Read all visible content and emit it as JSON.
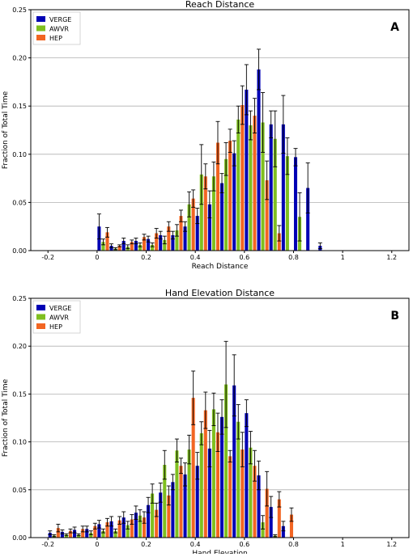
{
  "chart_data": [
    {
      "panel_letter": "A",
      "type": "bar",
      "title": "Reach Distance",
      "xlabel": "Reach Distance",
      "ylabel": "Fraction of Total Time",
      "xlim": [
        -0.27,
        1.27
      ],
      "ylim": [
        0,
        0.25
      ],
      "x_ticks": [
        -0.2,
        0,
        0.2,
        0.4,
        0.6,
        0.8,
        1,
        1.2
      ],
      "x_tick_labels": [
        "-0.2",
        "0",
        "0.2",
        "0.4",
        "0.6",
        "0.8",
        "1",
        "1.2"
      ],
      "y_ticks": [
        0,
        0.05,
        0.1,
        0.15,
        0.2,
        0.25
      ],
      "y_tick_labels": [
        "0.00",
        "0.05",
        "0.10",
        "0.15",
        "0.20",
        "0.25"
      ],
      "grid": "horizontal",
      "legend_position": "top-left",
      "bin_width": 0.05,
      "bins": [
        -0.2,
        -0.15,
        -0.1,
        -0.05,
        0,
        0.05,
        0.1,
        0.15,
        0.2,
        0.25,
        0.3,
        0.35,
        0.4,
        0.45,
        0.5,
        0.55,
        0.6,
        0.65,
        0.7,
        0.75,
        0.8,
        0.85,
        0.9,
        0.95,
        1,
        1.05,
        1.1,
        1.15
      ],
      "series": [
        {
          "name": "VERGE",
          "color": "#0000b4",
          "values": [
            0,
            0,
            0,
            0,
            0.025,
            0.005,
            0.01,
            0.01,
            0.012,
            0.016,
            0.016,
            0.025,
            0.036,
            0.048,
            0.07,
            0.101,
            0.167,
            0.188,
            0.131,
            0.131,
            0.097,
            0.065,
            0.005,
            0,
            0,
            0,
            0,
            0
          ],
          "errors": [
            0,
            0,
            0,
            0,
            0.013,
            0.002,
            0.003,
            0.003,
            0.003,
            0.004,
            0.004,
            0.005,
            0.008,
            0.014,
            0.01,
            0.013,
            0.026,
            0.021,
            0.014,
            0.03,
            0.009,
            0.026,
            0.003,
            0,
            0,
            0,
            0,
            0
          ]
        },
        {
          "name": "AWVR",
          "color": "#7fbf1f",
          "values": [
            0,
            0,
            0,
            0,
            0.009,
            0.002,
            0.004,
            0.006,
            0.006,
            0.011,
            0.021,
            0.048,
            0.079,
            0.077,
            0.095,
            0.136,
            0.13,
            0.133,
            0.116,
            0.098,
            0.035,
            0,
            0,
            0,
            0,
            0,
            0,
            0
          ],
          "errors": [
            0,
            0,
            0,
            0,
            0.003,
            0.001,
            0.002,
            0.002,
            0.002,
            0.004,
            0.006,
            0.013,
            0.031,
            0.015,
            0.017,
            0.014,
            0.015,
            0.031,
            0.029,
            0.019,
            0.025,
            0,
            0,
            0,
            0,
            0,
            0,
            0
          ],
          "offset_bins": 4
        },
        {
          "name": "HEP",
          "color": "#f26522",
          "values": [
            0,
            0,
            0,
            0,
            0.019,
            0.005,
            0.009,
            0.014,
            0.018,
            0.025,
            0.036,
            0.054,
            0.077,
            0.112,
            0.114,
            0.151,
            0.14,
            0.073,
            0.018,
            0,
            0,
            0,
            0,
            0,
            0,
            0,
            0,
            0
          ],
          "errors": [
            0,
            0,
            0,
            0,
            0.005,
            0.001,
            0.002,
            0.003,
            0.005,
            0.005,
            0.006,
            0.009,
            0.013,
            0.022,
            0.012,
            0.02,
            0.018,
            0.02,
            0.008,
            0,
            0,
            0,
            0,
            0,
            0,
            0,
            0,
            0
          ],
          "offset_bins": 4
        }
      ]
    },
    {
      "panel_letter": "B",
      "type": "bar",
      "title": "Hand Elevation Distance",
      "xlabel": "Hand Elevation",
      "ylabel": "Fraction of Total Time",
      "xlim": [
        -0.27,
        1.27
      ],
      "ylim": [
        0,
        0.25
      ],
      "x_ticks": [
        -0.2,
        0,
        0.2,
        0.4,
        0.6,
        0.8,
        1,
        1.2
      ],
      "x_tick_labels": [
        "-0.2",
        "0",
        "0.2",
        "0.4",
        "0.6",
        "0.8",
        "1",
        "1.2"
      ],
      "y_ticks": [
        0,
        0.05,
        0.1,
        0.15,
        0.2,
        0.25
      ],
      "y_tick_labels": [
        "0.00",
        "0.05",
        "0.10",
        "0.15",
        "0.20",
        "0.25"
      ],
      "grid": "horizontal",
      "legend_position": "top-left",
      "bin_width": 0.05,
      "bins": [
        -0.2,
        -0.15,
        -0.1,
        -0.05,
        0,
        0.05,
        0.1,
        0.15,
        0.2,
        0.25,
        0.3,
        0.35,
        0.4,
        0.45,
        0.5,
        0.55,
        0.6,
        0.65,
        0.7,
        0.75,
        0.8,
        0.85,
        0.9,
        0.95,
        1,
        1.05,
        1.1,
        1.15
      ],
      "series": [
        {
          "name": "VERGE",
          "color": "#0000b4",
          "values": [
            0.005,
            0.006,
            0.008,
            0.009,
            0.014,
            0.017,
            0.021,
            0.026,
            0.034,
            0.047,
            0.058,
            0.066,
            0.075,
            0.093,
            0.126,
            0.159,
            0.13,
            0.065,
            0.032,
            0.012,
            0,
            0,
            0,
            0,
            0,
            0,
            0,
            0
          ],
          "errors": [
            0.002,
            0.002,
            0.003,
            0.003,
            0.004,
            0.005,
            0.006,
            0.007,
            0.008,
            0.01,
            0.008,
            0.012,
            0.014,
            0.019,
            0.018,
            0.032,
            0.014,
            0.015,
            0.011,
            0.005,
            0,
            0,
            0,
            0,
            0,
            0,
            0,
            0
          ]
        },
        {
          "name": "AWVR",
          "color": "#7fbf1f",
          "values": [
            0.002,
            0.003,
            0.003,
            0.005,
            0.007,
            0.007,
            0.013,
            0.023,
            0.046,
            0.076,
            0.091,
            0.092,
            0.109,
            0.134,
            0.16,
            0.121,
            0.094,
            0.016,
            0.002,
            0,
            0,
            0,
            0,
            0,
            0,
            0,
            0,
            0
          ],
          "errors": [
            0.001,
            0.001,
            0.001,
            0.002,
            0.002,
            0.002,
            0.004,
            0.006,
            0.01,
            0.015,
            0.012,
            0.015,
            0.012,
            0.017,
            0.045,
            0.018,
            0.017,
            0.007,
            0.001,
            0,
            0,
            0,
            0,
            0,
            0,
            0,
            0,
            0
          ]
        },
        {
          "name": "HEP",
          "color": "#f26522",
          "values": [
            0.01,
            0.007,
            0.009,
            0.012,
            0.016,
            0.018,
            0.019,
            0.021,
            0.029,
            0.044,
            0.075,
            0.146,
            0.133,
            0.11,
            0.085,
            0.092,
            0.075,
            0.051,
            0.04,
            0.024,
            0,
            0,
            0,
            0,
            0,
            0,
            0,
            0
          ],
          "errors": [
            0.004,
            0.002,
            0.003,
            0.003,
            0.004,
            0.004,
            0.005,
            0.006,
            0.007,
            0.01,
            0.008,
            0.028,
            0.019,
            0.02,
            0.006,
            0.018,
            0.016,
            0.018,
            0.008,
            0.007,
            0,
            0,
            0,
            0,
            0,
            0,
            0,
            0
          ]
        }
      ]
    }
  ]
}
